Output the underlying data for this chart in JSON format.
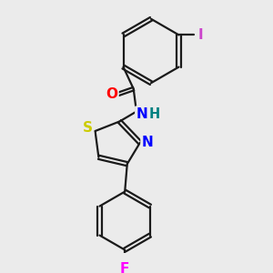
{
  "bg_color": "#ebebeb",
  "bond_color": "#1a1a1a",
  "bond_width": 1.6,
  "atom_colors": {
    "O": "#ff0000",
    "N": "#0000ff",
    "H": "#008080",
    "S": "#cccc00",
    "F": "#ff00ff",
    "I": "#cc44cc"
  },
  "font_size": 10.5
}
